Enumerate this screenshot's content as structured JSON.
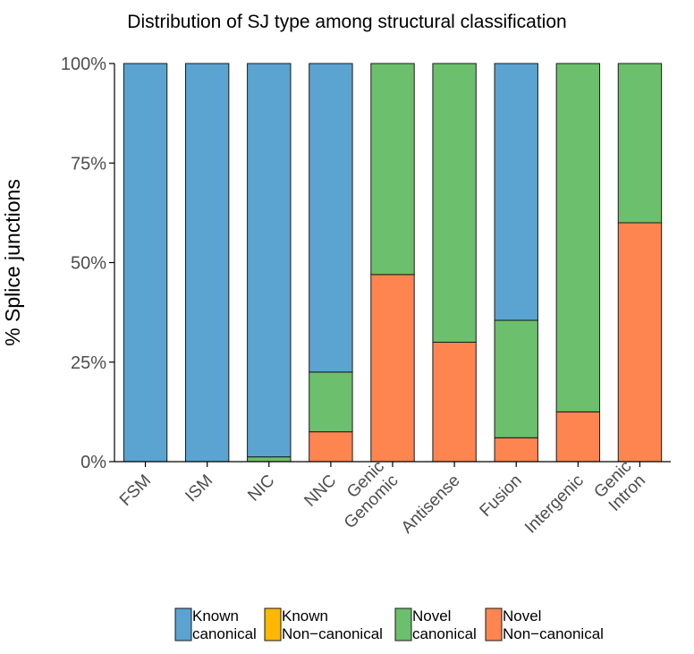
{
  "chart_data": {
    "type": "bar",
    "stacked": true,
    "title": "Distribution of SJ type among structural classification",
    "xlabel": "",
    "ylabel": "% Splice junctions",
    "ylim": [
      0,
      100
    ],
    "yticks": [
      "0%",
      "25%",
      "50%",
      "75%",
      "100%"
    ],
    "ytick_values": [
      0,
      25,
      50,
      75,
      100
    ],
    "categories": [
      [
        "FSM"
      ],
      [
        "ISM"
      ],
      [
        "NIC"
      ],
      [
        "NNC"
      ],
      [
        "Genic",
        "Genomic"
      ],
      [
        "Antisense"
      ],
      [
        "Fusion"
      ],
      [
        "Intergenic"
      ],
      [
        "Genic",
        "Intron"
      ]
    ],
    "series": [
      {
        "name": [
          "Known",
          "canonical"
        ],
        "color": "#5ba3d0",
        "values": [
          100,
          100,
          98.8,
          77.5,
          0,
          0,
          64.5,
          0,
          0
        ]
      },
      {
        "name": [
          "Known",
          "Non−canonical"
        ],
        "color": "#ffb700",
        "values": [
          0,
          0,
          0,
          0,
          0,
          0,
          0,
          0,
          0
        ]
      },
      {
        "name": [
          "Novel",
          "canonical"
        ],
        "color": "#6cbf6c",
        "values": [
          0,
          0,
          1.2,
          15.0,
          53.0,
          70.0,
          29.5,
          87.5,
          40.0
        ]
      },
      {
        "name": [
          "Novel",
          "Non−canonical"
        ],
        "color": "#ff8550",
        "values": [
          0,
          0,
          0,
          7.5,
          47.0,
          30.0,
          6.0,
          12.5,
          60.0
        ]
      }
    ],
    "stack_order_bottom_to_top": [
      3,
      2,
      1,
      0
    ],
    "grid": false,
    "legend_position": "bottom"
  }
}
